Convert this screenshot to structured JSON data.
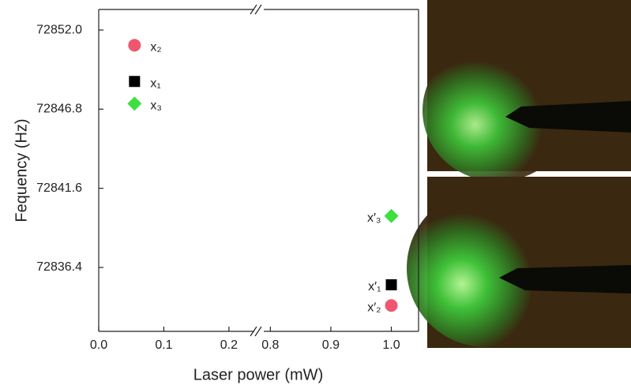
{
  "chart_data": {
    "type": "scatter",
    "y_label": "Fequency (Hz)",
    "x_label": "Laser power (mW)",
    "ylim": [
      72832.2,
      72853.35
    ],
    "yticks": [
      {
        "value": 72852.0,
        "label": "72852.0"
      },
      72846.8,
      72841.6,
      72836.4
    ],
    "x_segments": [
      {
        "xlim": [
          0,
          0.245
        ],
        "xticks": [
          {
            "value": 0,
            "label": "0.0"
          },
          0.1,
          0.2
        ]
      },
      {
        "xlim": [
          0.78,
          1.045
        ],
        "xticks": [
          0.8,
          0.9,
          {
            "value": 1.0,
            "label": "1.0"
          }
        ]
      }
    ],
    "series": [
      {
        "name": "x₂",
        "marker": "circle",
        "color": "#f1566f",
        "x": [
          0.055,
          1.0
        ],
        "values": [
          72851.0,
          72833.9
        ],
        "point_labels": [
          "x₂",
          "x′₂"
        ]
      },
      {
        "name": "x₁",
        "marker": "square",
        "color": "#000000",
        "x": [
          0.055,
          1.0
        ],
        "values": [
          72848.62,
          72835.26
        ],
        "point_labels": [
          "x₁",
          "x′₁"
        ]
      },
      {
        "name": "x₃",
        "marker": "diamond",
        "color": "#3ee03e",
        "x": [
          0.055,
          1.0
        ],
        "values": [
          72847.16,
          72839.78
        ],
        "point_labels": [
          "x₃",
          "x′₃"
        ]
      }
    ]
  }
}
